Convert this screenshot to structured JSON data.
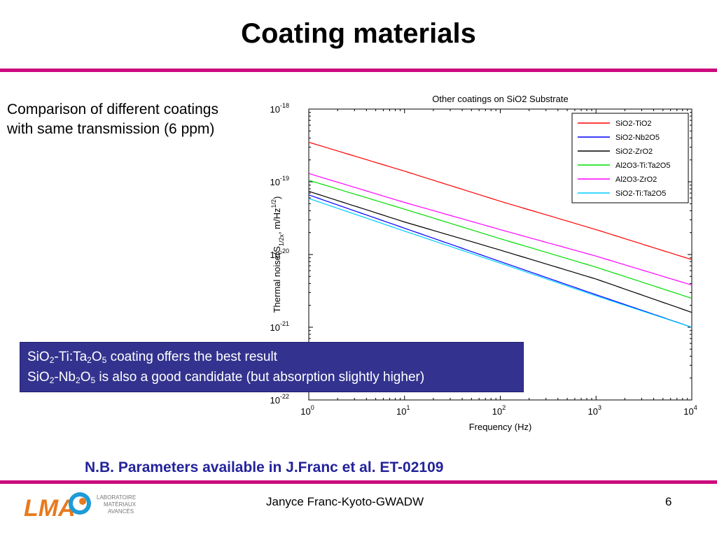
{
  "slide": {
    "title": "Coating materials",
    "description": [
      "Comparison of different coatings",
      "with same transmission (6 ppm)"
    ],
    "callout": {
      "line1": {
        "a": "SiO",
        "a_sub": "2",
        "b": "-Ti:Ta",
        "b_sub": "2",
        "c": "O",
        "c_sub": "5",
        "rest": " coating offers the best result"
      },
      "line2": {
        "a": "SiO",
        "a_sub": "2",
        "b": "-Nb",
        "b_sub": "2",
        "c": "O",
        "c_sub": "5",
        "rest": " is also a good candidate (but absorption slightly higher)"
      }
    },
    "note": "N.B. Parameters available in J.Franc et al. ET-02109",
    "footer": "Janyce Franc-Kyoto-GWADW",
    "page_number": "6",
    "logo": {
      "letters": "LMA",
      "line1": "LABORATOIRE",
      "line2": "MATÉRIAUX",
      "line3": "AVANCÉS"
    },
    "accent_color": "#cc0a7e",
    "callout_color": "#33338f",
    "note_color": "#23239b"
  },
  "chart_data": {
    "type": "line",
    "title": "Other coatings on SiO2 Substrate",
    "xlabel": "Frequency (Hz)",
    "ylabel": {
      "base": "Thermal noise(S",
      "sub": "1/2x",
      "unit": ", m/Hz",
      "sup": "1/2",
      "close": ")"
    },
    "x_scale": "log",
    "y_scale": "log",
    "xlim": [
      1,
      10000
    ],
    "ylim": [
      1e-22,
      1e-18
    ],
    "x_ticks": [
      {
        "value": 1,
        "base": "10",
        "exp": "0"
      },
      {
        "value": 10,
        "base": "10",
        "exp": "1"
      },
      {
        "value": 100,
        "base": "10",
        "exp": "2"
      },
      {
        "value": 1000,
        "base": "10",
        "exp": "3"
      },
      {
        "value": 10000,
        "base": "10",
        "exp": "4"
      }
    ],
    "y_ticks": [
      {
        "value": 1e-18,
        "base": "10",
        "exp": "-18"
      },
      {
        "value": 1e-19,
        "base": "10",
        "exp": "-19"
      },
      {
        "value": 1e-20,
        "base": "10",
        "exp": "-20"
      },
      {
        "value": 1e-21,
        "base": "10",
        "exp": "-21"
      },
      {
        "value": 1e-22,
        "base": "10",
        "exp": "-22"
      }
    ],
    "legend_position": "top-right",
    "grid": false,
    "x": [
      1,
      10,
      100,
      1000,
      10000
    ],
    "series": [
      {
        "name": "SiO2-TiO2",
        "color": "#ff0000",
        "values": [
          3.5e-19,
          1.4e-19,
          5.4e-20,
          2.2e-20,
          8.5e-21
        ]
      },
      {
        "name": "SiO2-Nb2O5",
        "color": "#0000ff",
        "values": [
          6.6e-20,
          2.3e-20,
          8e-21,
          2.8e-21,
          1e-21
        ]
      },
      {
        "name": "SiO2-ZrO2",
        "color": "#000000",
        "values": [
          7.4e-20,
          2.8e-20,
          1.15e-20,
          4.6e-21,
          1.6e-21
        ]
      },
      {
        "name": "Al2O3-Ti:Ta2O5",
        "color": "#00dd00",
        "values": [
          1.05e-19,
          4.2e-20,
          1.65e-20,
          6.7e-21,
          2.5e-21
        ]
      },
      {
        "name": "Al2O3-ZrO2",
        "color": "#ff00ff",
        "values": [
          1.3e-19,
          5.2e-20,
          2.2e-20,
          9.5e-21,
          3.8e-21
        ]
      },
      {
        "name": "SiO2-Ti:Ta2O5",
        "color": "#00ccff",
        "values": [
          5.9e-20,
          2.1e-20,
          7.6e-21,
          2.7e-21,
          1e-21
        ]
      }
    ]
  }
}
